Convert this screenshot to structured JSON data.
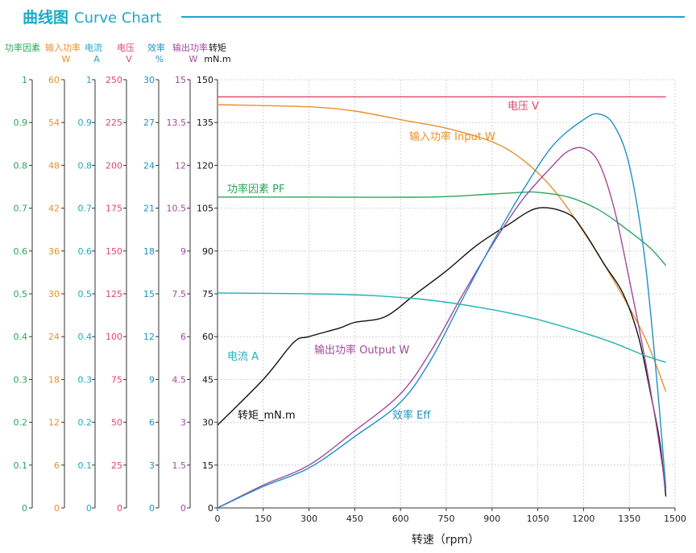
{
  "header": {
    "title_cn": "曲线图",
    "title_en": "Curve Chart",
    "accent": "#1aa9c9"
  },
  "chart_data": {
    "type": "line",
    "title": "曲线图 Curve Chart",
    "xlabel": "转速（rpm）",
    "xlim": [
      0,
      1500
    ],
    "x_ticks": [
      "0",
      "150",
      "300",
      "450",
      "600",
      "750",
      "900",
      "1050",
      "1200",
      "1350",
      "1500"
    ],
    "grid": true,
    "axes": [
      {
        "id": "pf",
        "label": "功率因素",
        "unit": "",
        "color": "#2aa65a",
        "range": [
          0,
          1
        ],
        "ticks": [
          "0",
          "0.1",
          "0.2",
          "0.3",
          "0.4",
          "0.5",
          "0.6",
          "0.7",
          "0.8",
          "0.9",
          "1"
        ]
      },
      {
        "id": "pin",
        "label": "输入功率",
        "unit": "W",
        "color": "#e8902b",
        "range": [
          0,
          60
        ],
        "ticks": [
          "0",
          "6",
          "12",
          "18",
          "24",
          "30",
          "36",
          "42",
          "48",
          "54",
          "60"
        ]
      },
      {
        "id": "cur",
        "label": "电流",
        "unit": "A",
        "color": "#1aa9c9",
        "range": [
          0,
          1
        ],
        "ticks": [
          "0",
          "0.1",
          "0.2",
          "0.3",
          "0.4",
          "0.5",
          "0.6",
          "0.7",
          "0.8",
          "0.9",
          "1"
        ]
      },
      {
        "id": "volt",
        "label": "电压",
        "unit": "V",
        "color": "#e0476b",
        "range": [
          0,
          250
        ],
        "ticks": [
          "0",
          "25",
          "50",
          "75",
          "100",
          "125",
          "150",
          "175",
          "200",
          "225",
          "250"
        ]
      },
      {
        "id": "eff",
        "label": "效率",
        "unit": "%",
        "color": "#1f8fc9",
        "range": [
          0,
          30
        ],
        "ticks": [
          "0",
          "3",
          "6",
          "9",
          "12",
          "15",
          "18",
          "21",
          "24",
          "27",
          "30"
        ]
      },
      {
        "id": "pout",
        "label": "输出功率",
        "unit": "W",
        "color": "#a24a9a",
        "range": [
          0,
          15
        ],
        "ticks": [
          "0",
          "1.5",
          "3",
          "4.5",
          "6",
          "7.5",
          "9",
          "10.5",
          "12",
          "13.5",
          "15"
        ]
      },
      {
        "id": "torque",
        "label": "转矩",
        "unit": "mN.m",
        "color": "#111111",
        "range": [
          0,
          150
        ],
        "ticks": [
          "0",
          "15",
          "30",
          "45",
          "60",
          "75",
          "90",
          "105",
          "120",
          "135",
          "150"
        ]
      }
    ],
    "series": [
      {
        "name": "电压 V",
        "axis": "volt",
        "color": "#e0476b",
        "points": [
          [
            0,
            240
          ],
          [
            1470,
            240
          ]
        ]
      },
      {
        "name": "输入功率 Input W",
        "axis": "pin",
        "color": "#e8902b",
        "points": [
          [
            0,
            56.5
          ],
          [
            300,
            56.2
          ],
          [
            450,
            55.6
          ],
          [
            600,
            54.4
          ],
          [
            750,
            53.2
          ],
          [
            900,
            51.3
          ],
          [
            1000,
            48.8
          ],
          [
            1100,
            44.7
          ],
          [
            1200,
            38.7
          ],
          [
            1300,
            31.8
          ],
          [
            1400,
            24.0
          ],
          [
            1470,
            16.3
          ]
        ]
      },
      {
        "name": "功率因素 PF",
        "axis": "pf",
        "color": "#2aa65a",
        "points": [
          [
            0,
            0.726
          ],
          [
            300,
            0.726
          ],
          [
            700,
            0.726
          ],
          [
            900,
            0.733
          ],
          [
            1000,
            0.737
          ],
          [
            1050,
            0.737
          ],
          [
            1150,
            0.726
          ],
          [
            1250,
            0.696
          ],
          [
            1350,
            0.646
          ],
          [
            1420,
            0.606
          ],
          [
            1470,
            0.566
          ]
        ]
      },
      {
        "name": "转矩_mN.m",
        "axis": "torque",
        "color": "#111111",
        "points": [
          [
            0,
            29
          ],
          [
            150,
            45
          ],
          [
            250,
            58
          ],
          [
            300,
            60
          ],
          [
            400,
            63
          ],
          [
            450,
            65
          ],
          [
            550,
            67
          ],
          [
            650,
            75
          ],
          [
            750,
            83
          ],
          [
            850,
            92
          ],
          [
            950,
            99
          ],
          [
            1050,
            105
          ],
          [
            1150,
            103
          ],
          [
            1200,
            97
          ],
          [
            1270,
            85
          ],
          [
            1330,
            75
          ],
          [
            1380,
            60
          ],
          [
            1420,
            40
          ],
          [
            1450,
            23
          ],
          [
            1470,
            4
          ]
        ]
      },
      {
        "name": "输出功率 Output W",
        "axis": "pout",
        "color": "#a24a9a",
        "points": [
          [
            0,
            0
          ],
          [
            150,
            0.8
          ],
          [
            300,
            1.5
          ],
          [
            450,
            2.7
          ],
          [
            600,
            4.0
          ],
          [
            700,
            5.5
          ],
          [
            800,
            7.4
          ],
          [
            900,
            9.2
          ],
          [
            1000,
            10.8
          ],
          [
            1100,
            12.0
          ],
          [
            1150,
            12.5
          ],
          [
            1200,
            12.6
          ],
          [
            1250,
            12.1
          ],
          [
            1300,
            10.5
          ],
          [
            1350,
            8.0
          ],
          [
            1400,
            5.3
          ],
          [
            1440,
            2.8
          ],
          [
            1470,
            0.6
          ]
        ]
      },
      {
        "name": "效率 Eff",
        "axis": "eff",
        "color": "#1f8fc9",
        "points": [
          [
            0,
            0
          ],
          [
            150,
            1.5
          ],
          [
            300,
            2.8
          ],
          [
            450,
            5.0
          ],
          [
            600,
            7.4
          ],
          [
            700,
            10.4
          ],
          [
            800,
            14.5
          ],
          [
            900,
            18.5
          ],
          [
            1000,
            22.2
          ],
          [
            1100,
            25.4
          ],
          [
            1200,
            27.2
          ],
          [
            1250,
            27.6
          ],
          [
            1300,
            26.8
          ],
          [
            1350,
            24.0
          ],
          [
            1400,
            17.6
          ],
          [
            1440,
            9.0
          ],
          [
            1470,
            1.4
          ]
        ]
      },
      {
        "name": "电流 A",
        "axis": "cur",
        "color": "#22b2b8",
        "points": [
          [
            0,
            0.502
          ],
          [
            300,
            0.5
          ],
          [
            500,
            0.496
          ],
          [
            700,
            0.485
          ],
          [
            900,
            0.463
          ],
          [
            1050,
            0.44
          ],
          [
            1200,
            0.409
          ],
          [
            1300,
            0.385
          ],
          [
            1400,
            0.356
          ],
          [
            1470,
            0.34
          ]
        ]
      }
    ],
    "labels": [
      {
        "text": "电压 V",
        "series": "电压 V",
        "color": "#e0476b"
      },
      {
        "text": "输入功率 Input W",
        "series": "输入功率 Input W",
        "color": "#e8902b"
      },
      {
        "text": "功率因素 PF",
        "series": "功率因素 PF",
        "color": "#2aa65a"
      },
      {
        "text": "电流 A",
        "series": "电流 A",
        "color": "#22b2b8"
      },
      {
        "text": "输出功率 Output W",
        "series": "输出功率 Output W",
        "color": "#a24a9a"
      },
      {
        "text": "转矩_mN.m",
        "series": "转矩_mN.m",
        "color": "#111111"
      },
      {
        "text": "效率 Eff",
        "series": "效率 Eff",
        "color": "#1f8fc9"
      }
    ]
  }
}
